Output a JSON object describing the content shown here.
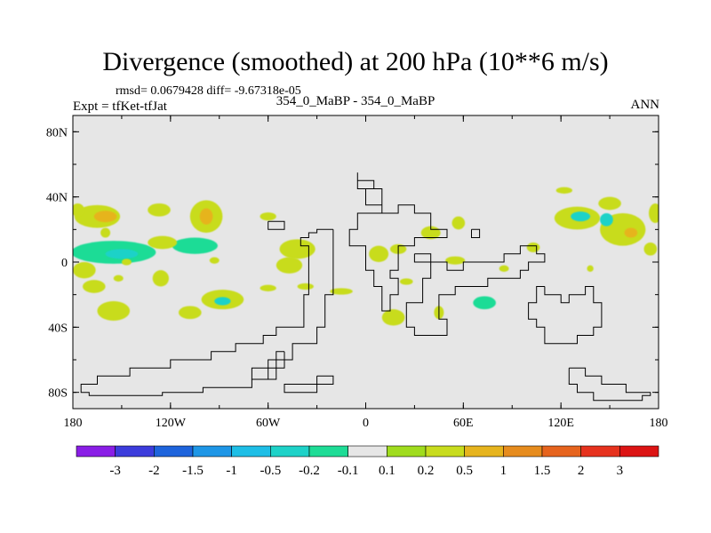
{
  "title": "Divergence (smoothed) at 200 hPa (10**6 m/s)",
  "stats_text": "rmsd= 0.0679428 diff= -9.67318e-05",
  "experiment_label": "Expt = tfKet-tfJat",
  "period_label": "354_0_MaBP - 354_0_MaBP",
  "season_label": "ANN",
  "chart_data": {
    "type": "heatmap",
    "projection": "cylindrical-equidistant",
    "xlim": [
      -180,
      180
    ],
    "ylim": [
      -90,
      90
    ],
    "x_ticks": [
      {
        "value": -180,
        "label": "180"
      },
      {
        "value": -120,
        "label": "120W"
      },
      {
        "value": -60,
        "label": "60W"
      },
      {
        "value": 0,
        "label": "0"
      },
      {
        "value": 60,
        "label": "60E"
      },
      {
        "value": 120,
        "label": "120E"
      },
      {
        "value": 180,
        "label": "180"
      }
    ],
    "y_ticks": [
      {
        "value": 80,
        "label": "80N"
      },
      {
        "value": 40,
        "label": "40N"
      },
      {
        "value": 0,
        "label": "0"
      },
      {
        "value": -40,
        "label": "40S"
      },
      {
        "value": -80,
        "label": "80S"
      }
    ],
    "background_color": "#e6e6e6",
    "colorbar": {
      "levels": [
        "-3",
        "-2",
        "-1.5",
        "-1",
        "-0.5",
        "-0.2",
        "-0.1",
        "0.1",
        "0.2",
        "0.5",
        "1",
        "1.5",
        "2",
        "3"
      ],
      "colors": [
        "#8a1ee6",
        "#3c3cdc",
        "#1e64dc",
        "#1e96e6",
        "#1ebee6",
        "#1ed2c8",
        "#1edc96",
        "#e6e6e6",
        "#a0dc1e",
        "#c8dc1e",
        "#e6b41e",
        "#e68c1e",
        "#e6641e",
        "#e6321e",
        "#dc1414"
      ]
    },
    "blobs": [
      {
        "lon": -165,
        "lat": 28,
        "rlon": 14,
        "rlat": 7,
        "value": 0.45
      },
      {
        "lon": -160,
        "lat": 28,
        "rlon": 7,
        "rlat": 3.5,
        "value": 0.7
      },
      {
        "lon": -177,
        "lat": 32,
        "rlon": 4,
        "rlat": 4,
        "value": 0.3
      },
      {
        "lon": -155,
        "lat": 6,
        "rlon": 26,
        "rlat": 7,
        "value": -0.15
      },
      {
        "lon": -150,
        "lat": 5,
        "rlon": 10,
        "rlat": 3,
        "value": -0.4
      },
      {
        "lon": -105,
        "lat": 10,
        "rlon": 14,
        "rlat": 5,
        "value": -0.15
      },
      {
        "lon": -125,
        "lat": 12,
        "rlon": 9,
        "rlat": 4,
        "value": 0.3
      },
      {
        "lon": -127,
        "lat": 32,
        "rlon": 7,
        "rlat": 4,
        "value": 0.3
      },
      {
        "lon": -98,
        "lat": 28,
        "rlon": 10,
        "rlat": 10,
        "value": 0.45
      },
      {
        "lon": -98,
        "lat": 28,
        "rlon": 4,
        "rlat": 5,
        "value": 0.7
      },
      {
        "lon": -173,
        "lat": -5,
        "rlon": 7,
        "rlat": 5,
        "value": 0.3
      },
      {
        "lon": -167,
        "lat": -15,
        "rlon": 7,
        "rlat": 4,
        "value": 0.3
      },
      {
        "lon": -126,
        "lat": -10,
        "rlon": 5,
        "rlat": 5,
        "value": 0.3
      },
      {
        "lon": -88,
        "lat": -23,
        "rlon": 13,
        "rlat": 6,
        "value": 0.3
      },
      {
        "lon": -88,
        "lat": -24,
        "rlon": 5,
        "rlat": 2.5,
        "value": -0.3
      },
      {
        "lon": -155,
        "lat": -30,
        "rlon": 10,
        "rlat": 6,
        "value": 0.3
      },
      {
        "lon": -108,
        "lat": -31,
        "rlon": 7,
        "rlat": 4,
        "value": 0.3
      },
      {
        "lon": -147,
        "lat": 0,
        "rlon": 3,
        "rlat": 2,
        "value": 0.3
      },
      {
        "lon": -93,
        "lat": 1,
        "rlon": 3,
        "rlat": 2,
        "value": 0.3
      },
      {
        "lon": -42,
        "lat": 8,
        "rlon": 11,
        "rlat": 6,
        "value": 0.3
      },
      {
        "lon": -47,
        "lat": -2,
        "rlon": 8,
        "rlat": 5,
        "value": 0.3
      },
      {
        "lon": -60,
        "lat": -16,
        "rlon": 5,
        "rlat": 2,
        "value": 0.3
      },
      {
        "lon": -37,
        "lat": -15,
        "rlon": 5,
        "rlat": 2,
        "value": 0.3
      },
      {
        "lon": -15,
        "lat": -18,
        "rlon": 7,
        "rlat": 2,
        "value": 0.3
      },
      {
        "lon": -60,
        "lat": 28,
        "rlon": 5,
        "rlat": 2.5,
        "value": 0.3
      },
      {
        "lon": 8,
        "lat": 5,
        "rlon": 6,
        "rlat": 5,
        "value": 0.3
      },
      {
        "lon": 20,
        "lat": 8,
        "rlon": 5,
        "rlat": 3,
        "value": 0.3
      },
      {
        "lon": 40,
        "lat": 18,
        "rlon": 6,
        "rlat": 4,
        "value": 0.3
      },
      {
        "lon": 57,
        "lat": 24,
        "rlon": 4,
        "rlat": 4,
        "value": 0.3
      },
      {
        "lon": 55,
        "lat": 1,
        "rlon": 6,
        "rlat": 2.5,
        "value": 0.3
      },
      {
        "lon": 25,
        "lat": -12,
        "rlon": 4,
        "rlat": 2,
        "value": 0.3
      },
      {
        "lon": 17,
        "lat": -34,
        "rlon": 7,
        "rlat": 5,
        "value": 0.3
      },
      {
        "lon": 45,
        "lat": -31,
        "rlon": 3,
        "rlat": 4,
        "value": 0.3
      },
      {
        "lon": 73,
        "lat": -25,
        "rlon": 7,
        "rlat": 4,
        "value": -0.15
      },
      {
        "lon": 85,
        "lat": -4,
        "rlon": 3,
        "rlat": 2,
        "value": 0.3
      },
      {
        "lon": 103,
        "lat": 9,
        "rlon": 4,
        "rlat": 3,
        "value": 0.3
      },
      {
        "lon": 122,
        "lat": 44,
        "rlon": 5,
        "rlat": 2,
        "value": 0.3
      },
      {
        "lon": 130,
        "lat": 27,
        "rlon": 14,
        "rlat": 7,
        "value": 0.3
      },
      {
        "lon": 132,
        "lat": 28,
        "rlon": 6,
        "rlat": 3,
        "value": -0.3
      },
      {
        "lon": 150,
        "lat": 36,
        "rlon": 7,
        "rlat": 4,
        "value": 0.3
      },
      {
        "lon": 158,
        "lat": 20,
        "rlon": 14,
        "rlat": 10,
        "value": 0.45
      },
      {
        "lon": 163,
        "lat": 18,
        "rlon": 4,
        "rlat": 3,
        "value": 0.7
      },
      {
        "lon": 148,
        "lat": 26,
        "rlon": 4,
        "rlat": 4,
        "value": -0.3
      },
      {
        "lon": 178,
        "lat": 30,
        "rlon": 4,
        "rlat": 6,
        "value": 0.3
      },
      {
        "lon": 175,
        "lat": 8,
        "rlon": 4,
        "rlat": 4,
        "value": 0.3
      },
      {
        "lon": 138,
        "lat": -4,
        "rlon": 2,
        "rlat": 2,
        "value": 0.3
      },
      {
        "lon": -160,
        "lat": 18,
        "rlon": 3,
        "rlat": 3,
        "value": 0.3
      },
      {
        "lon": -152,
        "lat": -10,
        "rlon": 3,
        "rlat": 2,
        "value": 0.3
      }
    ],
    "coastlines": [
      [
        [
          -20,
          20
        ],
        [
          -30,
          20
        ],
        [
          -30,
          18
        ],
        [
          -35,
          18
        ],
        [
          -35,
          15
        ],
        [
          -40,
          15
        ],
        [
          -40,
          10
        ],
        [
          -35,
          10
        ],
        [
          -35,
          -20
        ],
        [
          -38,
          -20
        ],
        [
          -38,
          -40
        ],
        [
          -55,
          -40
        ],
        [
          -55,
          -45
        ],
        [
          -63,
          -45
        ],
        [
          -63,
          -50
        ],
        [
          -80,
          -50
        ],
        [
          -80,
          -55
        ],
        [
          -95,
          -55
        ],
        [
          -95,
          -60
        ],
        [
          -120,
          -60
        ],
        [
          -120,
          -65
        ],
        [
          -145,
          -65
        ],
        [
          -145,
          -70
        ],
        [
          -165,
          -70
        ],
        [
          -165,
          -75
        ],
        [
          -175,
          -75
        ],
        [
          -175,
          -80
        ],
        [
          -170,
          -80
        ],
        [
          -170,
          -82
        ],
        [
          -125,
          -82
        ],
        [
          -125,
          -80
        ],
        [
          -100,
          -80
        ],
        [
          -100,
          -77
        ],
        [
          -70,
          -77
        ],
        [
          -70,
          -72
        ],
        [
          -60,
          -72
        ],
        [
          -60,
          -65
        ],
        [
          -55,
          -65
        ],
        [
          -55,
          -60
        ],
        [
          -45,
          -60
        ],
        [
          -45,
          -50
        ],
        [
          -30,
          -50
        ],
        [
          -30,
          -40
        ],
        [
          -25,
          -40
        ],
        [
          -25,
          -20
        ],
        [
          -20,
          -20
        ],
        [
          -20,
          20
        ]
      ],
      [
        [
          -5,
          55
        ],
        [
          -5,
          50
        ],
        [
          5,
          50
        ],
        [
          5,
          45
        ],
        [
          0,
          45
        ],
        [
          0,
          35
        ],
        [
          10,
          35
        ],
        [
          10,
          30
        ],
        [
          20,
          30
        ],
        [
          20,
          35
        ],
        [
          30,
          35
        ],
        [
          30,
          30
        ],
        [
          40,
          30
        ],
        [
          40,
          20
        ],
        [
          50,
          20
        ],
        [
          50,
          15
        ],
        [
          30,
          15
        ],
        [
          30,
          10
        ],
        [
          20,
          10
        ],
        [
          20,
          -5
        ],
        [
          15,
          -5
        ],
        [
          15,
          -10
        ],
        [
          20,
          -10
        ],
        [
          20,
          -20
        ],
        [
          15,
          -20
        ],
        [
          15,
          -30
        ],
        [
          10,
          -30
        ],
        [
          10,
          -15
        ],
        [
          5,
          -15
        ],
        [
          5,
          -5
        ],
        [
          0,
          -5
        ],
        [
          0,
          10
        ],
        [
          -10,
          10
        ],
        [
          -10,
          20
        ],
        [
          -5,
          20
        ],
        [
          -5,
          30
        ],
        [
          10,
          30
        ],
        [
          10,
          45
        ],
        [
          -5,
          45
        ],
        [
          -5,
          55
        ]
      ],
      [
        [
          30,
          5
        ],
        [
          30,
          0
        ],
        [
          40,
          0
        ],
        [
          40,
          -10
        ],
        [
          35,
          -10
        ],
        [
          35,
          -25
        ],
        [
          25,
          -25
        ],
        [
          25,
          -40
        ],
        [
          30,
          -40
        ],
        [
          30,
          -45
        ],
        [
          50,
          -45
        ],
        [
          50,
          -35
        ],
        [
          45,
          -35
        ],
        [
          45,
          -20
        ],
        [
          55,
          -20
        ],
        [
          55,
          -15
        ],
        [
          75,
          -15
        ],
        [
          75,
          -10
        ],
        [
          95,
          -10
        ],
        [
          95,
          -5
        ],
        [
          100,
          -5
        ],
        [
          100,
          0
        ],
        [
          110,
          0
        ],
        [
          110,
          5
        ],
        [
          105,
          5
        ],
        [
          105,
          10
        ],
        [
          95,
          10
        ],
        [
          95,
          5
        ],
        [
          85,
          5
        ],
        [
          85,
          0
        ],
        [
          60,
          0
        ],
        [
          60,
          -5
        ],
        [
          50,
          -5
        ],
        [
          50,
          0
        ],
        [
          40,
          0
        ],
        [
          40,
          5
        ],
        [
          30,
          5
        ]
      ],
      [
        [
          110,
          -15
        ],
        [
          110,
          -20
        ],
        [
          120,
          -20
        ],
        [
          120,
          -25
        ],
        [
          125,
          -25
        ],
        [
          125,
          -20
        ],
        [
          135,
          -20
        ],
        [
          135,
          -15
        ],
        [
          140,
          -15
        ],
        [
          140,
          -25
        ],
        [
          145,
          -25
        ],
        [
          145,
          -40
        ],
        [
          140,
          -40
        ],
        [
          140,
          -45
        ],
        [
          130,
          -45
        ],
        [
          130,
          -50
        ],
        [
          110,
          -50
        ],
        [
          110,
          -40
        ],
        [
          105,
          -40
        ],
        [
          105,
          -35
        ],
        [
          100,
          -35
        ],
        [
          100,
          -25
        ],
        [
          105,
          -25
        ],
        [
          105,
          -15
        ],
        [
          110,
          -15
        ]
      ],
      [
        [
          125,
          -65
        ],
        [
          135,
          -65
        ],
        [
          135,
          -70
        ],
        [
          145,
          -70
        ],
        [
          145,
          -75
        ],
        [
          160,
          -75
        ],
        [
          160,
          -80
        ],
        [
          175,
          -80
        ],
        [
          175,
          -82
        ],
        [
          170,
          -82
        ],
        [
          170,
          -85
        ],
        [
          140,
          -85
        ],
        [
          140,
          -80
        ],
        [
          130,
          -80
        ],
        [
          130,
          -75
        ],
        [
          125,
          -75
        ],
        [
          125,
          -65
        ]
      ],
      [
        [
          -50,
          -55
        ],
        [
          -55,
          -55
        ],
        [
          -55,
          -60
        ],
        [
          -60,
          -60
        ],
        [
          -60,
          -65
        ],
        [
          -70,
          -65
        ],
        [
          -70,
          -72
        ],
        [
          -55,
          -72
        ],
        [
          -55,
          -65
        ],
        [
          -50,
          -65
        ],
        [
          -50,
          -55
        ]
      ],
      [
        [
          -30,
          -70
        ],
        [
          -30,
          -75
        ],
        [
          -50,
          -75
        ],
        [
          -50,
          -80
        ],
        [
          -30,
          -80
        ],
        [
          -30,
          -75
        ],
        [
          -20,
          -75
        ],
        [
          -20,
          -70
        ],
        [
          -30,
          -70
        ]
      ],
      [
        [
          65,
          20
        ],
        [
          65,
          15
        ],
        [
          70,
          15
        ],
        [
          70,
          20
        ],
        [
          65,
          20
        ]
      ],
      [
        [
          -60,
          25
        ],
        [
          -60,
          20
        ],
        [
          -50,
          20
        ],
        [
          -50,
          25
        ],
        [
          -60,
          25
        ]
      ]
    ]
  }
}
